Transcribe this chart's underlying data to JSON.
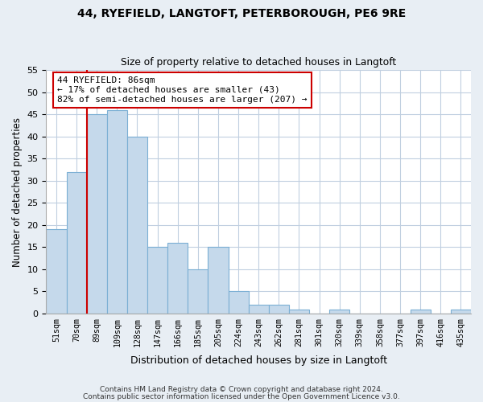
{
  "title": "44, RYEFIELD, LANGTOFT, PETERBOROUGH, PE6 9RE",
  "subtitle": "Size of property relative to detached houses in Langtoft",
  "xlabel": "Distribution of detached houses by size in Langtoft",
  "ylabel": "Number of detached properties",
  "bar_color": "#c5d9eb",
  "bar_edge_color": "#7bafd4",
  "bin_labels": [
    "51sqm",
    "70sqm",
    "89sqm",
    "109sqm",
    "128sqm",
    "147sqm",
    "166sqm",
    "185sqm",
    "205sqm",
    "224sqm",
    "243sqm",
    "262sqm",
    "281sqm",
    "301sqm",
    "320sqm",
    "339sqm",
    "358sqm",
    "377sqm",
    "397sqm",
    "416sqm",
    "435sqm"
  ],
  "bar_heights": [
    19,
    32,
    45,
    46,
    40,
    15,
    16,
    10,
    15,
    5,
    2,
    2,
    1,
    0,
    1,
    0,
    0,
    0,
    1,
    0,
    1
  ],
  "ylim": [
    0,
    55
  ],
  "yticks": [
    0,
    5,
    10,
    15,
    20,
    25,
    30,
    35,
    40,
    45,
    50,
    55
  ],
  "annotation_title": "44 RYEFIELD: 86sqm",
  "annotation_line1": "← 17% of detached houses are smaller (43)",
  "annotation_line2": "82% of semi-detached houses are larger (207) →",
  "vline_color": "#cc0000",
  "footer_line1": "Contains HM Land Registry data © Crown copyright and database right 2024.",
  "footer_line2": "Contains public sector information licensed under the Open Government Licence v3.0.",
  "background_color": "#e8eef4",
  "plot_bg_color": "#ffffff",
  "grid_color": "#c0cfe0"
}
